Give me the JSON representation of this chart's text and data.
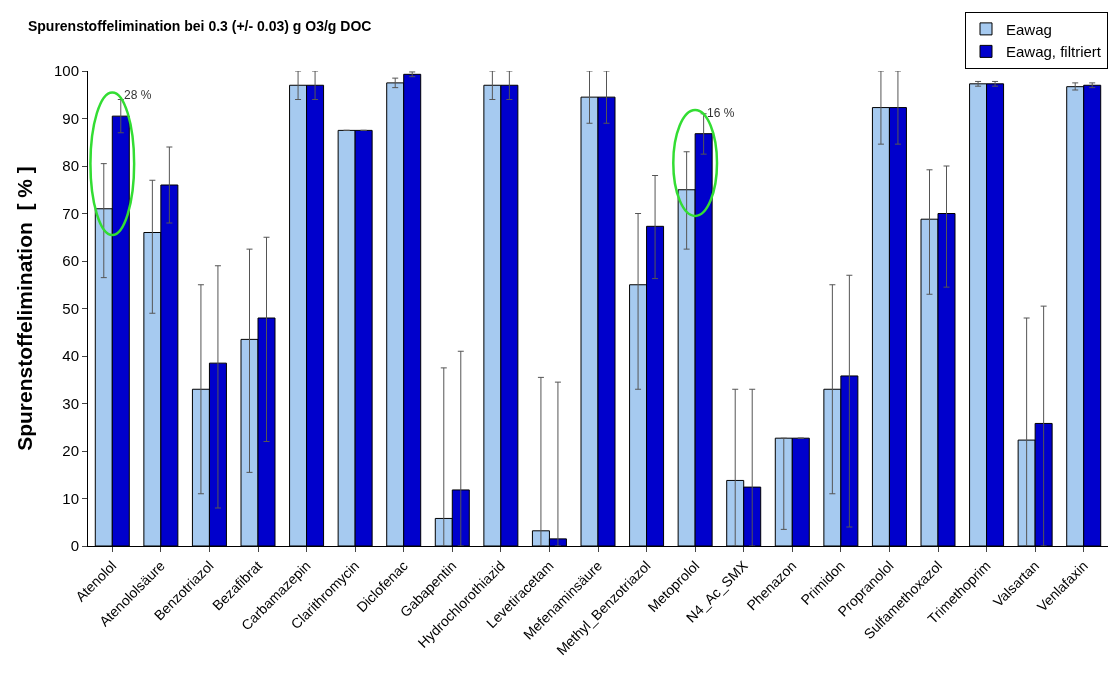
{
  "chart_data": {
    "type": "bar",
    "title": "Spurenstoffelimination bei 0.3 (+/- 0.03) g O3/g DOC",
    "ylabel": "Spurenstoffelimination  [ % ]",
    "categories": [
      "Atenolol",
      "Atenololsäure",
      "Benzotriazol",
      "Bezafibrat",
      "Carbamazepin",
      "Clarithromycin",
      "Diclofenac",
      "Gabapentin",
      "Hydrochlorothiazid",
      "Levetiracetam",
      "Mefenaminsäure",
      "Methyl_Benzotriazol",
      "Metoprolol",
      "N4_Ac_SMX",
      "Phenazon",
      "Primidon",
      "Propranolol",
      "Sulfamethoxazol",
      "Trimethoprim",
      "Valsartan",
      "Venlafaxin"
    ],
    "series": [
      {
        "name": "Eawag",
        "color": "#a6caf0",
        "values": [
          71,
          66,
          33,
          43.5,
          97,
          87.5,
          97.5,
          5.8,
          97,
          3.2,
          94.5,
          55,
          75,
          13.8,
          22.7,
          33,
          92.3,
          68.8,
          97.3,
          22.3,
          96.7
        ],
        "errors": [
          [
            56.5,
            80.5
          ],
          [
            49,
            77
          ],
          22,
          [
            15.5,
            62.5
          ],
          3,
          null,
          1,
          [
            0,
            37.5
          ],
          3,
          [
            0,
            35.5
          ],
          5.5,
          [
            33,
            70
          ],
          [
            62.5,
            83
          ],
          [
            0,
            33
          ],
          [
            3.5,
            22.7
          ],
          22,
          7.7,
          [
            53,
            79.2
          ],
          0.5,
          [
            0,
            48
          ],
          [
            96,
            97.5
          ]
        ]
      },
      {
        "name": "Eawag, filtriert",
        "color": "#0000cc",
        "values": [
          90.5,
          76,
          38.5,
          48,
          97,
          87.5,
          99.3,
          11.8,
          97,
          1.5,
          94.5,
          67.3,
          86.8,
          12.4,
          22.7,
          35.8,
          92.3,
          70,
          97.3,
          25.8,
          97
        ],
        "errors": [
          3.5,
          8,
          [
            8,
            59
          ],
          [
            22,
            65
          ],
          3,
          null,
          0.5,
          [
            0,
            41
          ],
          3,
          [
            0,
            34.5
          ],
          5.5,
          [
            56.3,
            78
          ],
          [
            82.5,
            91
          ],
          [
            0,
            33
          ],
          null,
          [
            4,
            57
          ],
          7.7,
          [
            54.5,
            80
          ],
          0.5,
          [
            0,
            50.5
          ],
          0.5
        ]
      }
    ],
    "annotations": [
      {
        "text": "28 %",
        "x": "Atenolol",
        "y": 90.5
      },
      {
        "text": "16 %",
        "x": "Metoprolol",
        "y": 86.8
      }
    ],
    "ylim": [
      0,
      100
    ],
    "yticks": [
      0,
      10,
      20,
      30,
      40,
      50,
      60,
      70,
      80,
      90,
      100
    ],
    "legend": "top right"
  }
}
